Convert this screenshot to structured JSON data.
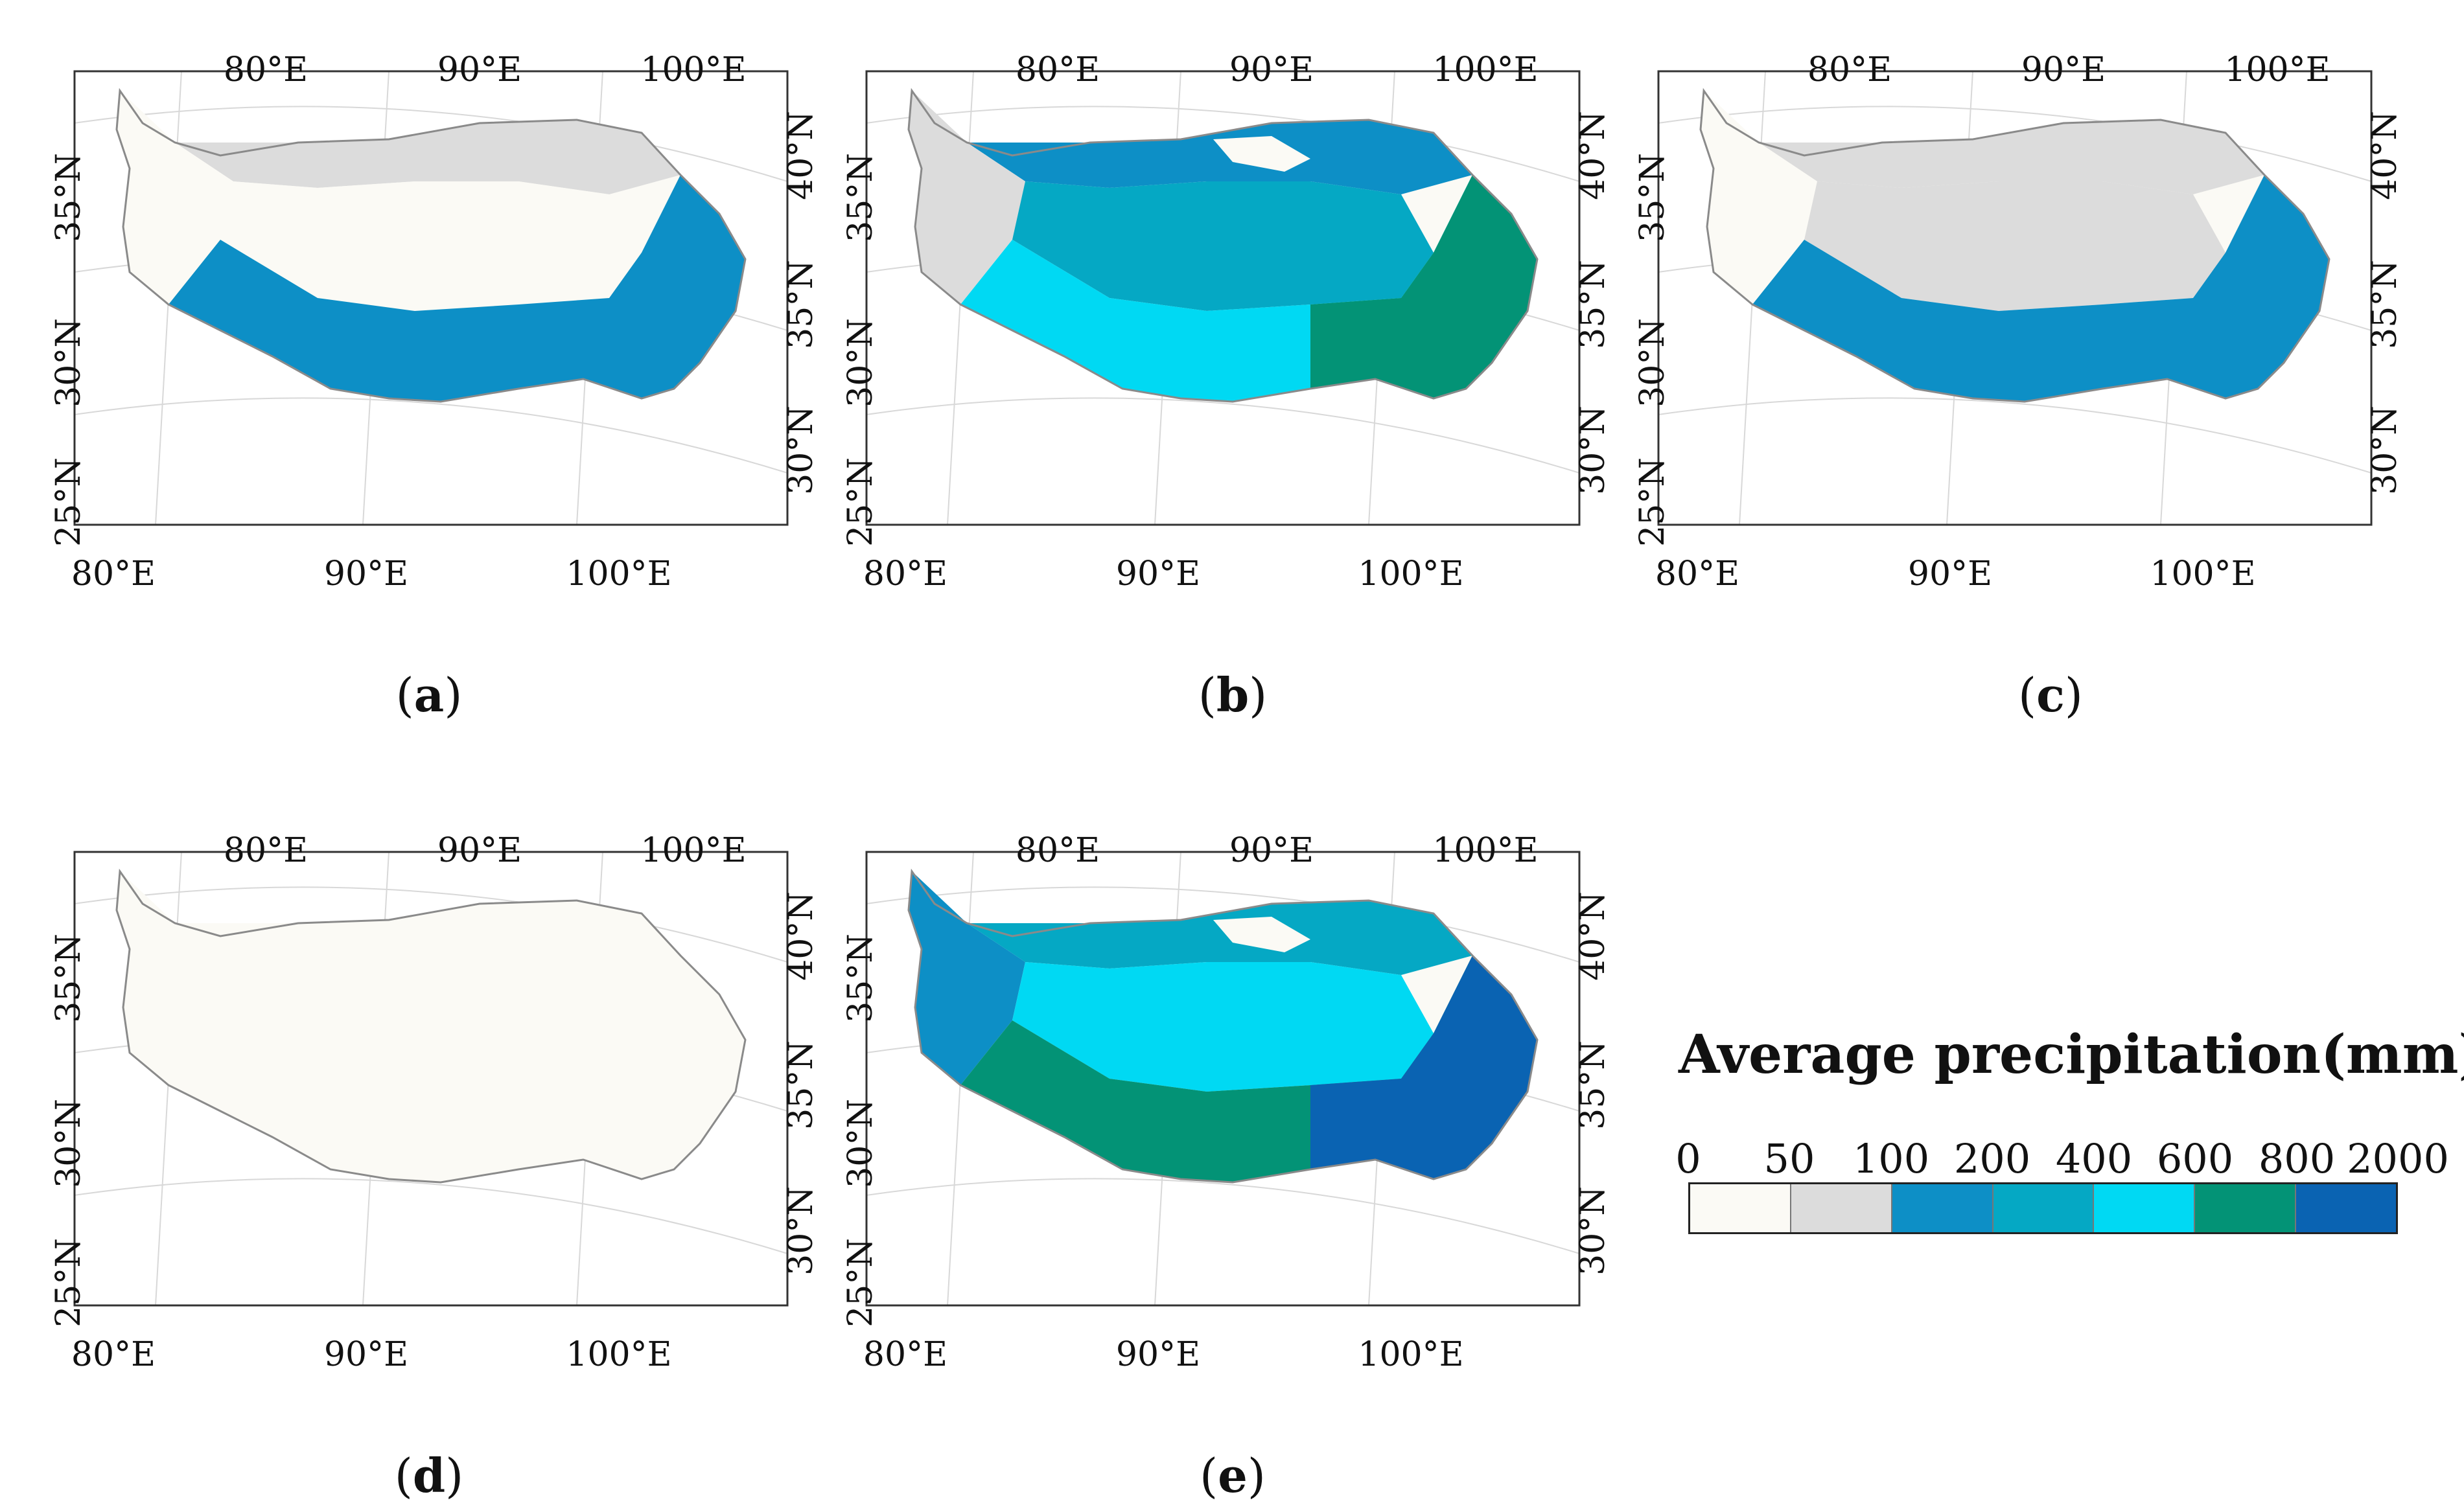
{
  "figure": {
    "panels": [
      {
        "id": "a",
        "label": "a"
      },
      {
        "id": "b",
        "label": "b"
      },
      {
        "id": "c",
        "label": "c"
      },
      {
        "id": "d",
        "label": "d"
      },
      {
        "id": "e",
        "label": "e"
      }
    ],
    "axis_labels": {
      "top": [
        "80°E",
        "90°E",
        "100°E"
      ],
      "bottom": [
        "80°E",
        "90°E",
        "100°E"
      ],
      "left": [
        "35°N",
        "30°N",
        "25°N"
      ],
      "right": [
        "40°N",
        "35°N",
        "30°N"
      ]
    }
  },
  "legend": {
    "title": "Average precipitation(mm)",
    "breaks": [
      "0",
      "50",
      "100",
      "200",
      "400",
      "600",
      "800",
      "2000"
    ],
    "colors": [
      "#fbfaf5",
      "#dcdcdc",
      "#0d8fc6",
      "#05a8c4",
      "#00d9f3",
      "#039376",
      "#0a63b2"
    ]
  },
  "colors": {
    "outline": "#8a8a8a",
    "frame": "#333333",
    "graticule": "#d8d8d8"
  }
}
